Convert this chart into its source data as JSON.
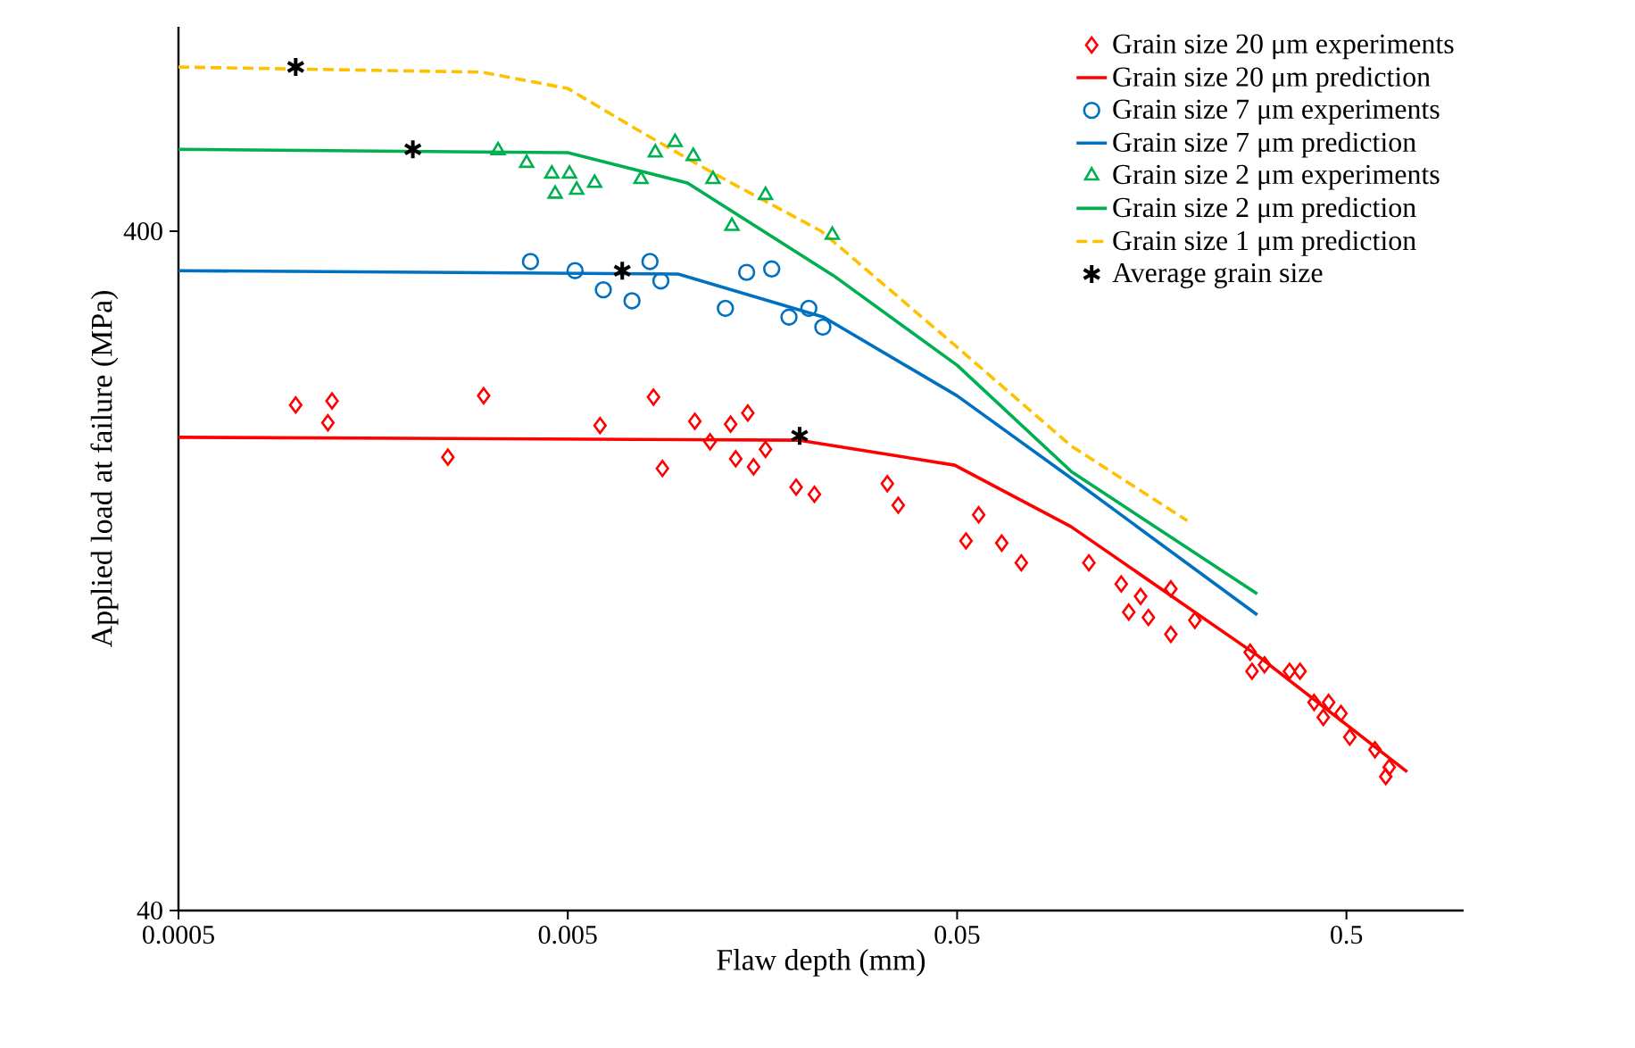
{
  "chart_data": {
    "type": "scatter",
    "xlabel": "Flaw depth (mm)",
    "ylabel": "Applied load at failure (MPa)",
    "log": "xy",
    "xlim": [
      0.0005,
      1
    ],
    "ylim": [
      40,
      800
    ],
    "xticks": [
      0.0005,
      0.005,
      0.05,
      0.5
    ],
    "yticks": [
      40,
      400
    ],
    "legend": "top right",
    "series": [
      {
        "name": "Grain size 20 μm experiments",
        "color": "#ff0000",
        "marker": "diamond",
        "x": [
          0.001,
          0.00124,
          0.00121,
          0.00246,
          0.00304,
          0.00605,
          0.0083,
          0.00875,
          0.0106,
          0.0116,
          0.0131,
          0.0145,
          0.0135,
          0.015,
          0.0161,
          0.0193,
          0.0215,
          0.0331,
          0.0353,
          0.0568,
          0.0527,
          0.0651,
          0.0731,
          0.109,
          0.132,
          0.177,
          0.148,
          0.138,
          0.155,
          0.204,
          0.177,
          0.283,
          0.286,
          0.308,
          0.357,
          0.38,
          0.413,
          0.45,
          0.436,
          0.484,
          0.51,
          0.592,
          0.644,
          0.631
        ],
        "values": [
          222,
          225,
          209,
          186,
          229,
          207,
          228,
          179,
          210,
          196,
          208,
          216,
          185,
          180,
          191,
          168,
          164,
          170,
          158,
          153,
          140,
          139,
          130,
          130,
          121,
          119,
          116,
          110,
          108,
          107,
          102,
          96,
          90,
          92,
          90,
          90,
          81,
          81,
          77,
          78,
          72,
          69,
          65,
          63
        ]
      },
      {
        "type": "line",
        "name": "Grain size 20 μm prediction",
        "color": "#ff0000",
        "line_style": "solid",
        "x": [
          0.0005,
          0.0197,
          0.0493,
          0.098,
          0.295,
          0.716
        ],
        "values": [
          199,
          197,
          181,
          147,
          95,
          64
        ]
      },
      {
        "name": "Grain size 7 μm experiments",
        "color": "#0070c0",
        "marker": "circle",
        "x": [
          0.00401,
          0.00522,
          0.00617,
          0.00731,
          0.00813,
          0.00867,
          0.0127,
          0.0144,
          0.0167,
          0.0185,
          0.0208,
          0.0226
        ],
        "values": [
          361,
          350,
          328,
          316,
          361,
          338,
          308,
          348,
          352,
          299,
          308,
          289
        ]
      },
      {
        "type": "line",
        "name": "Grain size 7 μm prediction",
        "color": "#0070c0",
        "line_style": "solid",
        "x": [
          0.0005,
          0.0096,
          0.0227,
          0.05,
          0.0984,
          0.295
        ],
        "values": [
          350,
          346,
          299,
          229,
          173,
          109
        ]
      },
      {
        "name": "Grain size 2 μm experiments",
        "color": "#00b050",
        "marker": "triangle",
        "x": [
          0.00331,
          0.00392,
          0.00455,
          0.00505,
          0.00586,
          0.00464,
          0.00527,
          0.00771,
          0.00839,
          0.00943,
          0.0105,
          0.0118,
          0.0132,
          0.0161,
          0.0239
        ],
        "values": [
          526,
          504,
          486,
          486,
          471,
          454,
          460,
          477,
          522,
          541,
          516,
          477,
          407,
          452,
          395
        ]
      },
      {
        "type": "line",
        "name": "Grain size 2 μm prediction",
        "color": "#00b050",
        "line_style": "solid",
        "x": [
          0.0005,
          0.005,
          0.01015,
          0.0241,
          0.05,
          0.0984,
          0.295
        ],
        "values": [
          528,
          522,
          471,
          344,
          254,
          177,
          117
        ]
      },
      {
        "type": "line",
        "name": "Grain size 1 μm prediction",
        "color": "#ffc000",
        "line_style": "dashed",
        "x": [
          0.0005,
          0.00301,
          0.005,
          0.0078,
          0.0119,
          0.0224,
          0.05,
          0.0984,
          0.195
        ],
        "values": [
          698,
          686,
          649,
          558,
          486,
          400,
          270,
          193,
          150
        ]
      },
      {
        "name": "Average grain size",
        "color": "#000000",
        "marker": "cross",
        "x": [
          0.001,
          0.002,
          0.0069,
          0.0197
        ],
        "values": [
          698,
          528,
          350,
          200
        ]
      }
    ]
  }
}
